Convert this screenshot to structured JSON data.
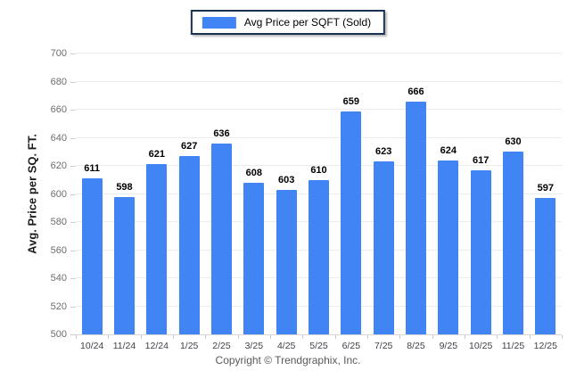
{
  "legend": {
    "label": "Avg Price per SQFT (Sold)",
    "swatch_color": "#4184f3"
  },
  "footer": {
    "copyright": "Copyright © Trendgraphix, Inc."
  },
  "colors": {
    "bar": "#4184f3",
    "gridline": "#ececec",
    "axis_line": "#d6d6d6",
    "legend_border": "#1b3150"
  },
  "chart_data": {
    "type": "bar",
    "title": "",
    "ylabel": "Avg. Price per SQ. FT.",
    "xlabel": "",
    "legend_entries": [
      "Avg Price per SQFT (Sold)"
    ],
    "legend_position": "top-center",
    "grid": true,
    "ylim": [
      500,
      700
    ],
    "ytick_step": 20,
    "ytick_labels": [
      "500",
      "520",
      "540",
      "560",
      "580",
      "600",
      "620",
      "640",
      "660",
      "700"
    ],
    "categories": [
      "10/24",
      "11/24",
      "12/24",
      "1/25",
      "2/25",
      "3/25",
      "4/25",
      "5/25",
      "6/25",
      "7/25",
      "8/25",
      "9/25",
      "10/25",
      "11/25",
      "12/25"
    ],
    "series": [
      {
        "name": "Avg Price per SQFT (Sold)",
        "color": "#4184f3",
        "values": [
          611,
          598,
          621,
          627,
          636,
          608,
          603,
          610,
          659,
          623,
          666,
          624,
          617,
          630,
          597
        ]
      }
    ]
  }
}
